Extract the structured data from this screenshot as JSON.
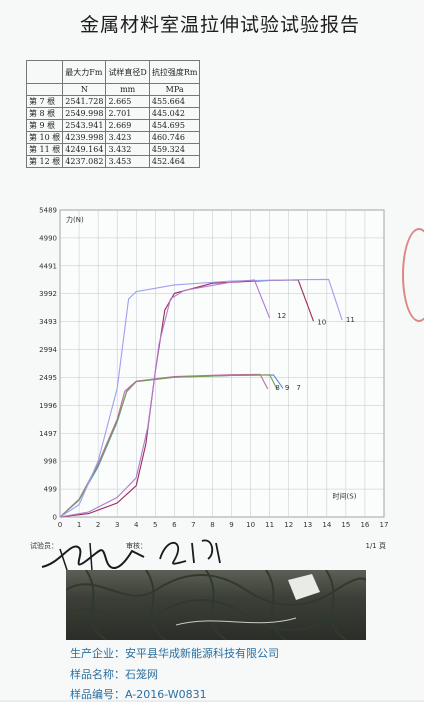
{
  "report": {
    "title": "金属材料室温拉伸试验试验报告",
    "page_indicator": "1/1 頁",
    "operator_label": "试验员：",
    "reviewer_label": "审核："
  },
  "results_table": {
    "headers": [
      "",
      "最大力Fm",
      "试样直径D",
      "抗拉强度Rm"
    ],
    "units": [
      "",
      "N",
      "mm",
      "MPa"
    ],
    "rows": [
      {
        "label": "第 7 根",
        "fm": "2541.728",
        "d": "2.665",
        "rm": "455.664"
      },
      {
        "label": "第 8 根",
        "fm": "2549.998",
        "d": "2.701",
        "rm": "445.042"
      },
      {
        "label": "第 9 根",
        "fm": "2543.941",
        "d": "2.669",
        "rm": "454.695"
      },
      {
        "label": "第 10 根",
        "fm": "4239.998",
        "d": "3.423",
        "rm": "460.746"
      },
      {
        "label": "第 11 根",
        "fm": "4249.164",
        "d": "3.432",
        "rm": "459.324"
      },
      {
        "label": "第 12 根",
        "fm": "4237.082",
        "d": "3.453",
        "rm": "452.464"
      }
    ]
  },
  "chart_data": {
    "type": "line",
    "ylabel": "力(N)",
    "xlabel": "时间(S)",
    "y_ticks": [
      "5489",
      "4990",
      "4491",
      "3992",
      "3493",
      "2994",
      "2495",
      "1996",
      "1497",
      "998",
      "499",
      "0"
    ],
    "x_ticks": [
      "0",
      "1",
      "2",
      "3",
      "4",
      "5",
      "6",
      "7",
      "8",
      "9",
      "10",
      "11",
      "12",
      "13",
      "14",
      "15",
      "16",
      "17"
    ],
    "xlim": [
      0,
      17
    ],
    "ylim": [
      0,
      5489
    ],
    "grid": true,
    "series": [
      {
        "name": "7",
        "color": "#5a8fd0",
        "points": [
          [
            0,
            0
          ],
          [
            1,
            300
          ],
          [
            2,
            900
          ],
          [
            3,
            1700
          ],
          [
            3.5,
            2250
          ],
          [
            4,
            2420
          ],
          [
            6,
            2500
          ],
          [
            9,
            2530
          ],
          [
            11.2,
            2540
          ],
          [
            11.7,
            2300
          ]
        ]
      },
      {
        "name": "8",
        "color": "#c26aa6",
        "points": [
          [
            0,
            0
          ],
          [
            1,
            320
          ],
          [
            2,
            950
          ],
          [
            3,
            1750
          ],
          [
            3.4,
            2250
          ],
          [
            4,
            2430
          ],
          [
            6,
            2510
          ],
          [
            9,
            2545
          ],
          [
            10.5,
            2549
          ],
          [
            10.9,
            2290
          ]
        ]
      },
      {
        "name": "9",
        "color": "#7a9a55",
        "points": [
          [
            0,
            0
          ],
          [
            1,
            310
          ],
          [
            2,
            920
          ],
          [
            3,
            1720
          ],
          [
            3.5,
            2240
          ],
          [
            4,
            2420
          ],
          [
            6,
            2500
          ],
          [
            9,
            2530
          ],
          [
            11,
            2543
          ],
          [
            11.4,
            2280
          ]
        ]
      },
      {
        "name": "10",
        "color": "#9c2b55",
        "points": [
          [
            0,
            0
          ],
          [
            1.5,
            60
          ],
          [
            3,
            250
          ],
          [
            4,
            560
          ],
          [
            4.5,
            1300
          ],
          [
            5,
            2600
          ],
          [
            5.5,
            3700
          ],
          [
            6,
            4000
          ],
          [
            8,
            4180
          ],
          [
            11,
            4230
          ],
          [
            12.5,
            4239
          ],
          [
            13.3,
            3500
          ]
        ]
      },
      {
        "name": "11",
        "color": "#9d9ff2",
        "points": [
          [
            0,
            0
          ],
          [
            1,
            220
          ],
          [
            2,
            1000
          ],
          [
            3,
            2300
          ],
          [
            3.6,
            3900
          ],
          [
            4,
            4030
          ],
          [
            6,
            4150
          ],
          [
            9,
            4220
          ],
          [
            13,
            4245
          ],
          [
            14.1,
            4249
          ],
          [
            14.8,
            3520
          ]
        ]
      },
      {
        "name": "12",
        "color": "#b27bd0",
        "points": [
          [
            0,
            0
          ],
          [
            1.5,
            90
          ],
          [
            3,
            350
          ],
          [
            4,
            700
          ],
          [
            4.6,
            1600
          ],
          [
            5.2,
            3100
          ],
          [
            5.8,
            3900
          ],
          [
            6.5,
            4050
          ],
          [
            9,
            4200
          ],
          [
            10.2,
            4237
          ],
          [
            11,
            3560
          ]
        ]
      }
    ],
    "curve_labels": [
      {
        "text": "12",
        "x": 11.4,
        "y": 3560
      },
      {
        "text": "10",
        "x": 13.5,
        "y": 3440
      },
      {
        "text": "11",
        "x": 15.0,
        "y": 3490
      },
      {
        "text": "8",
        "x": 11.3,
        "y": 2270
      },
      {
        "text": "9",
        "x": 11.8,
        "y": 2270
      },
      {
        "text": "7",
        "x": 12.4,
        "y": 2270
      }
    ]
  },
  "product": {
    "manufacturer_label": "生产企业：",
    "manufacturer": "安平县华成新能源科技有限公司",
    "sample_name_label": "样品名称：",
    "sample_name": "石笼网",
    "sample_no_label": "样品编号：",
    "sample_no": "A-2016-W0831"
  }
}
